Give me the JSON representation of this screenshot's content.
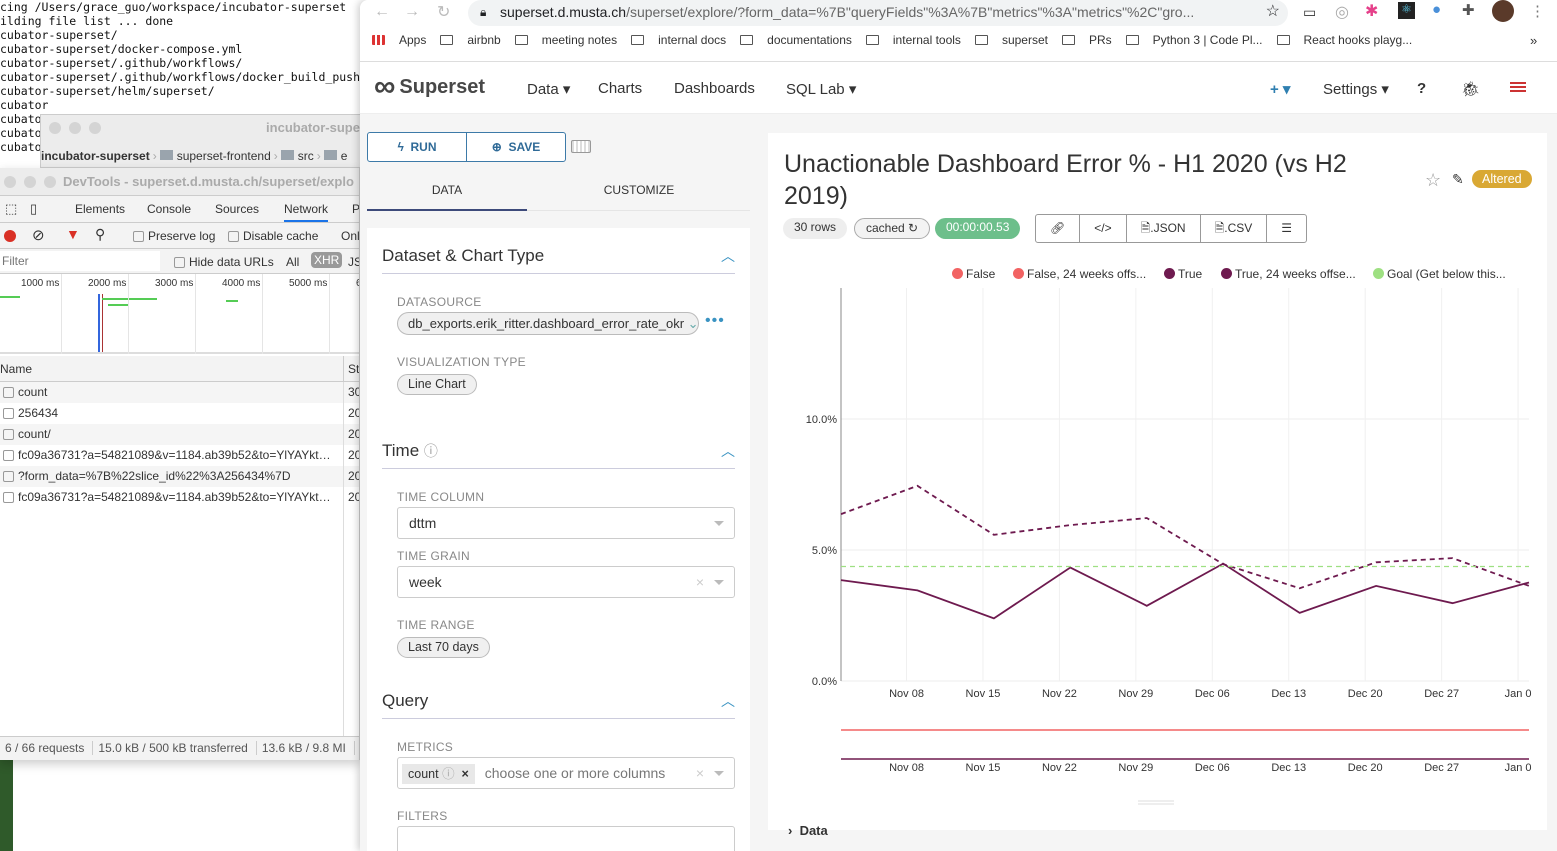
{
  "terminal": {
    "lines": [
      "cing /Users/grace_guo/workspace/incubator-superset",
      "",
      "ilding file list ... done",
      "cubator-superset/",
      "cubator-superset/docker-compose.yml",
      "cubator-superset/.github/workflows/",
      "cubator-superset/.github/workflows/docker_build_push",
      "cubator-superset/helm/superset/",
      "cubator",
      "cubator",
      "cubator",
      "cubator"
    ]
  },
  "editor": {
    "title": "incubator-super",
    "crumbs": [
      "incubator-superset",
      "superset-frontend",
      "src",
      "e"
    ]
  },
  "devtools": {
    "title": "DevTools - superset.d.musta.ch/superset/explo",
    "tabs": [
      "Elements",
      "Console",
      "Sources",
      "Network",
      "P"
    ],
    "preserve_log": "Preserve log",
    "disable_cache": "Disable cache",
    "online": "Onl",
    "filter_placeholder": "Filter",
    "hide_data_urls": "Hide data URLs",
    "all": "All",
    "xhr": "XHR",
    "js": "JS",
    "ticks": [
      "1000 ms",
      "2000 ms",
      "3000 ms",
      "4000 ms",
      "5000 ms",
      "6"
    ],
    "col_name": "Name",
    "col_status": "St",
    "requests": [
      {
        "name": "count",
        "status": "30"
      },
      {
        "name": "256434",
        "status": "20"
      },
      {
        "name": "count/",
        "status": "20"
      },
      {
        "name": "fc09a36731?a=54821089&v=1184.ab39b52&to=YlYAYkt…",
        "status": "20"
      },
      {
        "name": "?form_data=%7B%22slice_id%22%3A256434%7D",
        "status": "20"
      },
      {
        "name": "fc09a36731?a=54821089&v=1184.ab39b52&to=YlYAYkt…",
        "status": "20"
      }
    ],
    "footer": [
      "6 / 66 requests",
      "15.0 kB / 500 kB transferred",
      "13.6 kB / 9.8 MI"
    ]
  },
  "browser": {
    "url_host": "superset.d.musta.ch",
    "url_path": "/superset/explore/?form_data=%7B\"queryFields\"%3A%7B\"metrics\"%3A\"metrics\"%2C\"gro...",
    "bookmarks": [
      "Apps",
      "airbnb",
      "meeting notes",
      "internal docs",
      "documentations",
      "internal tools",
      "superset",
      "PRs",
      "Python 3 | Code Pl...",
      "React hooks playg..."
    ],
    "more": "»"
  },
  "nav": {
    "brand": "Superset",
    "items": [
      "Data ▾",
      "Charts",
      "Dashboards",
      "SQL Lab ▾"
    ],
    "plus": "+ ▾",
    "settings": "Settings ▾",
    "help": "?"
  },
  "controls": {
    "run": "RUN",
    "save": "SAVE",
    "tabs": [
      "DATA",
      "CUSTOMIZE"
    ],
    "sections": {
      "dataset": "Dataset & Chart Type",
      "time": "Time",
      "query": "Query"
    },
    "datasource_label": "DATASOURCE",
    "datasource": "db_exports.erik_ritter.dashboard_error_rate_okr",
    "viz_label": "VISUALIZATION TYPE",
    "viz": "Line Chart",
    "time_column_label": "TIME COLUMN",
    "time_column": "dttm",
    "time_grain_label": "TIME GRAIN",
    "time_grain": "week",
    "time_range_label": "TIME RANGE",
    "time_range": "Last 70 days",
    "metrics_label": "METRICS",
    "metric": "count",
    "metrics_placeholder": "choose one or more columns",
    "filters_label": "FILTERS"
  },
  "chart": {
    "title": "Unactionable Dashboard Error % - H1 2020 (vs H2 2019)",
    "altered": "Altered",
    "rows": "30 rows",
    "cached": "cached ↻",
    "duration": "00:00:00.53",
    "json": ".JSON",
    "csv": ".CSV",
    "data_section": "Data"
  },
  "chart_data": {
    "type": "line",
    "title": "Unactionable Dashboard Error % - H1 2020 (vs H2 2019)",
    "ylim": [
      0,
      11.5
    ],
    "yticks": [
      "0.0%",
      "5.0%",
      "10.0%"
    ],
    "ytick_values": [
      0,
      5,
      10
    ],
    "xticks": [
      "Nov 08",
      "Nov 15",
      "Nov 22",
      "Nov 29",
      "Dec 06",
      "Dec 13",
      "Dec 20",
      "Dec 27",
      "Jan 0"
    ],
    "x_days": [
      0,
      7,
      14,
      21,
      28,
      35,
      42,
      49,
      56,
      63
    ],
    "xtick_days": [
      6,
      13,
      20,
      27,
      34,
      41,
      48,
      55,
      62
    ],
    "xlim": [
      0,
      63
    ],
    "legend": [
      {
        "name": "False",
        "color": "#f26363"
      },
      {
        "name": "False, 24 weeks offs...",
        "color": "#f26363"
      },
      {
        "name": "True",
        "color": "#6e1a4f"
      },
      {
        "name": "True, 24 weeks offse...",
        "color": "#6e1a4f"
      },
      {
        "name": "Goal (Get below this...",
        "color": "#9ee082"
      }
    ],
    "series": [
      {
        "name": "True",
        "color": "#6e1a4f",
        "dash": false,
        "values": [
          3.85,
          3.46,
          2.39,
          4.33,
          2.87,
          4.48,
          2.6,
          3.63,
          2.97,
          3.76
        ]
      },
      {
        "name": "True, 24 weeks offset",
        "color": "#6e1a4f",
        "dash": true,
        "values": [
          6.37,
          7.45,
          5.58,
          5.95,
          6.22,
          4.46,
          3.54,
          4.53,
          4.69,
          3.63
        ]
      },
      {
        "name": "Goal",
        "color": "#9ee082",
        "dash": true,
        "values": [
          4.37,
          4.37,
          4.37,
          4.37,
          4.37,
          4.37,
          4.37,
          4.37,
          4.37,
          4.37
        ]
      }
    ]
  }
}
